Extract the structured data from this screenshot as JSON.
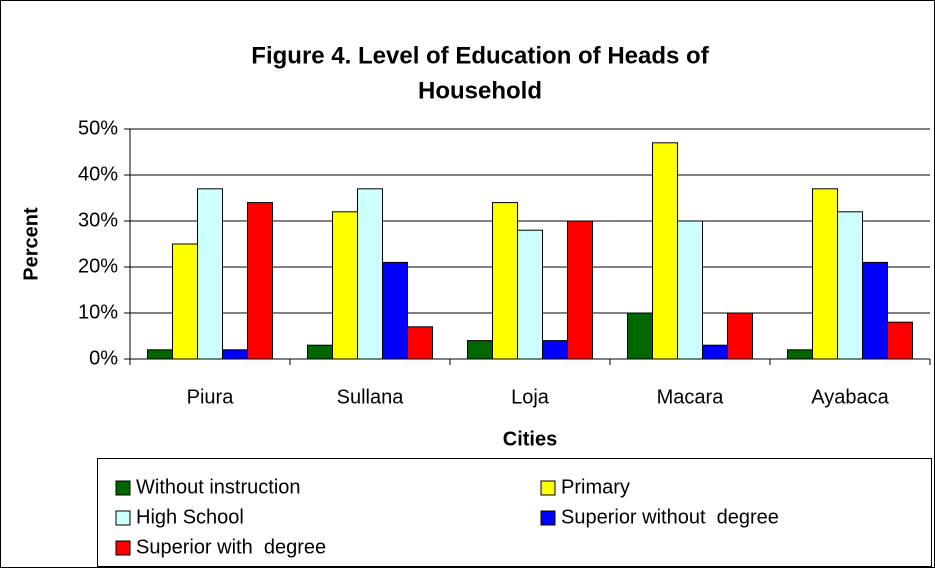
{
  "chart_data": {
    "type": "bar",
    "title": "Figure 4. Level of Education of Heads of",
    "title_line2": "Household",
    "x_label": "Cities",
    "y_label": "Percent",
    "categories": [
      "Piura",
      "Sullana",
      "Loja",
      "Macara",
      "Ayabaca"
    ],
    "series": [
      {
        "name": "Without instruction",
        "color": "#006600",
        "values": [
          2,
          3,
          4,
          10,
          2
        ]
      },
      {
        "name": "Primary",
        "color": "#ffff00",
        "values": [
          25,
          32,
          34,
          47,
          37
        ]
      },
      {
        "name": "High School",
        "color": "#ccffff",
        "values": [
          37,
          37,
          28,
          30,
          32
        ]
      },
      {
        "name": "Superior without  degree",
        "color": "#0000ff",
        "values": [
          2,
          21,
          4,
          3,
          21
        ]
      },
      {
        "name": "Superior with  degree",
        "color": "#ff0000",
        "values": [
          34,
          7,
          30,
          10,
          8
        ]
      }
    ],
    "ylim": [
      0,
      50
    ],
    "yticks": [
      {
        "value": 0,
        "label": "0%"
      },
      {
        "value": 10,
        "label": "10%"
      },
      {
        "value": 20,
        "label": "20%"
      },
      {
        "value": 30,
        "label": "30%"
      },
      {
        "value": 40,
        "label": "40%"
      },
      {
        "value": 50,
        "label": "50%"
      }
    ],
    "grid": true,
    "legend": "bottom"
  }
}
